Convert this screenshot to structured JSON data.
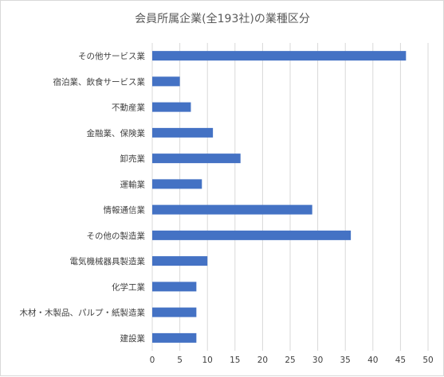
{
  "chart_data": {
    "type": "bar",
    "orientation": "horizontal",
    "title": "会員所属企業(全193社)の業種区分",
    "xlabel": "",
    "ylabel": "",
    "categories": [
      "その他サービス業",
      "宿泊業、飲食サービス業",
      "不動産業",
      "金融業、保険業",
      "卸売業",
      "運輸業",
      "情報通信業",
      "その他の製造業",
      "電気機械器具製造業",
      "化学工業",
      "木材・木製品、パルプ・紙製造業",
      "建設業"
    ],
    "values": [
      46,
      5,
      7,
      11,
      16,
      9,
      29,
      36,
      10,
      8,
      8,
      8
    ],
    "xlim": [
      0,
      50
    ],
    "xticks": [
      "0",
      "5",
      "10",
      "15",
      "20",
      "25",
      "30",
      "35",
      "40",
      "45",
      "50"
    ],
    "grid": "vertical",
    "legend": "none",
    "bar_color": "#4472c4",
    "grid_color": "#d9d9d9"
  }
}
